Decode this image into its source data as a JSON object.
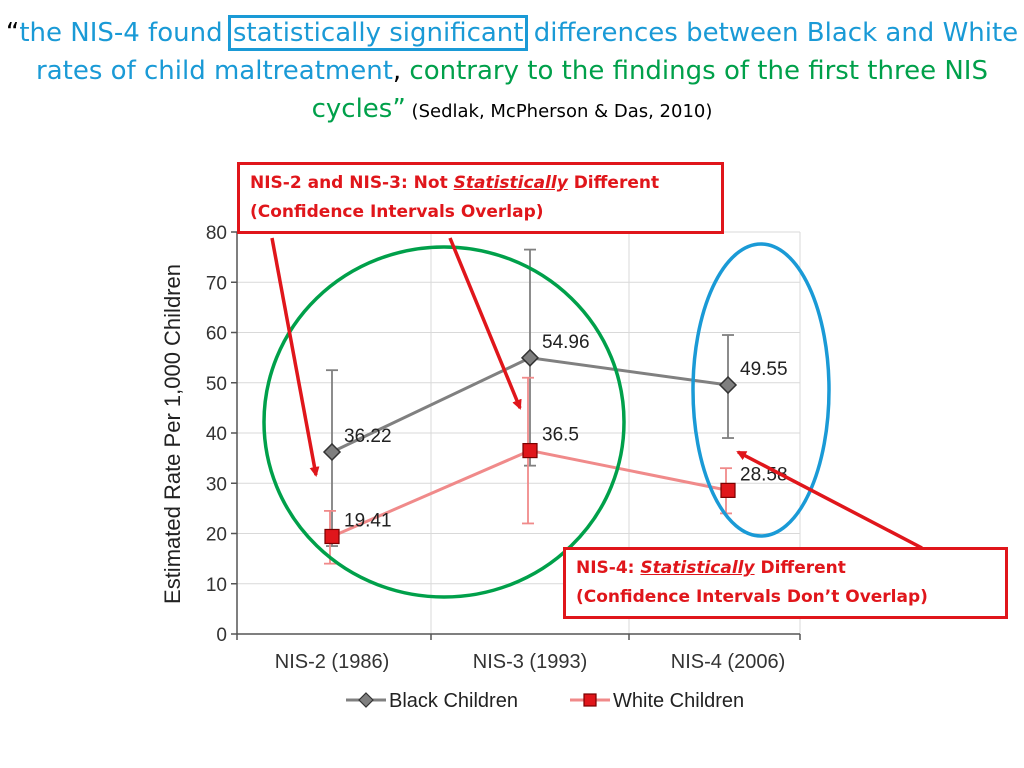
{
  "title": {
    "open_quote": "“",
    "part1": "the NIS-4 found ",
    "highlight": "statistically significant",
    "part2": " differences between Black and White rates of child maltreatment",
    "comma": ",",
    "part3": " contrary to the findings of the first three NIS cycles”",
    "citation": " (Sedlak, McPherson & Das, 2010)"
  },
  "callouts": {
    "top": {
      "prefix": "NIS-2 and NIS-3: Not ",
      "emph": "Statistically",
      "suffix": " Different",
      "line2": "(Confidence Intervals Overlap)"
    },
    "bottom": {
      "prefix": "NIS-4: ",
      "emph": "Statistically",
      "suffix": " Different",
      "line2": "(Confidence Intervals  Don’t Overlap)"
    }
  },
  "colors": {
    "black_series": "#808080",
    "white_series": "#f08a8a",
    "white_marker": "#e0161b",
    "callout_red": "#e0161b",
    "ellipse_green": "#00a04a",
    "ellipse_blue": "#1a9ad6"
  },
  "chart_data": {
    "type": "line",
    "ylabel": "Estimated Rate Per  1,000 Children",
    "xlabel": "",
    "categories": [
      "NIS-2 (1986)",
      "NIS-3 (1993)",
      "NIS-4 (2006)"
    ],
    "ylim": [
      0,
      80
    ],
    "yticks": [
      0,
      10,
      20,
      30,
      40,
      50,
      60,
      70,
      80
    ],
    "grid": true,
    "legend_position": "bottom",
    "series": [
      {
        "name": "Black Children",
        "values": [
          36.22,
          54.96,
          49.55
        ],
        "labels": [
          "36.22",
          "54.96",
          "49.55"
        ],
        "ci_low": [
          17.5,
          33.5,
          39.0
        ],
        "ci_high": [
          52.5,
          76.5,
          59.5
        ],
        "marker": "diamond"
      },
      {
        "name": "White Children",
        "values": [
          19.41,
          36.5,
          28.58
        ],
        "labels": [
          "19.41",
          "36.5",
          "28.58"
        ],
        "ci_low": [
          14.0,
          22.0,
          24.0
        ],
        "ci_high": [
          24.5,
          51.0,
          33.0
        ],
        "marker": "square"
      }
    ]
  }
}
